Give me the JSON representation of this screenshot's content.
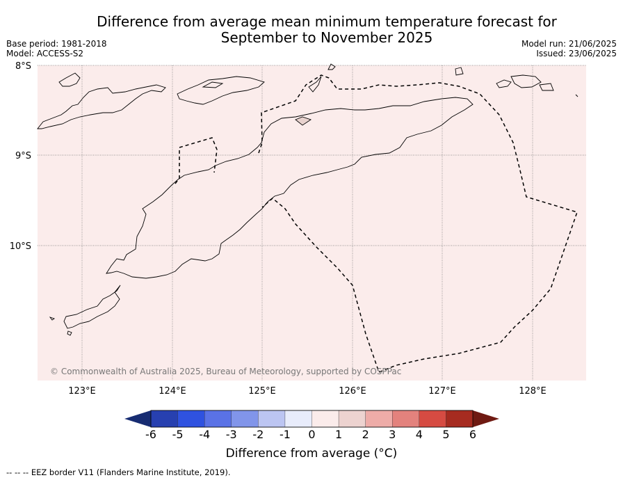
{
  "title_line1": "Difference from average mean minimum temperature forecast for",
  "title_line2": "September to November 2025",
  "meta": {
    "base_period": "Base period: 1981-2018",
    "model": "Model: ACCESS-S2",
    "model_run": "Model run: 21/06/2025",
    "issued": "Issued: 23/06/2025"
  },
  "copyright": "© Commonwealth of Australia 2025, Bureau of Meteorology, supported by COSPPac",
  "map": {
    "background_color": "#fbeceb",
    "lat_labels": [
      "8°S",
      "9°S",
      "10°S"
    ],
    "lon_labels": [
      "123°E",
      "124°E",
      "125°E",
      "126°E",
      "127°E",
      "128°E"
    ]
  },
  "colorbar": {
    "title": "Difference from average (°C)",
    "ticks": [
      "-6",
      "-5",
      "-4",
      "-3",
      "-2",
      "-1",
      "0",
      "1",
      "2",
      "3",
      "4",
      "5",
      "6"
    ],
    "colors": [
      "#172c72",
      "#2740b0",
      "#2f52e0",
      "#5a72e6",
      "#8195ea",
      "#bcc5f2",
      "#e8ecfb",
      "#fbeceb",
      "#edd3d0",
      "#eeaca8",
      "#e3827d",
      "#d64b42",
      "#a62b20",
      "#6f1a12"
    ]
  },
  "footnote": "--  --  -- EEZ border V11 (Flanders Marine Institute, 2019)."
}
